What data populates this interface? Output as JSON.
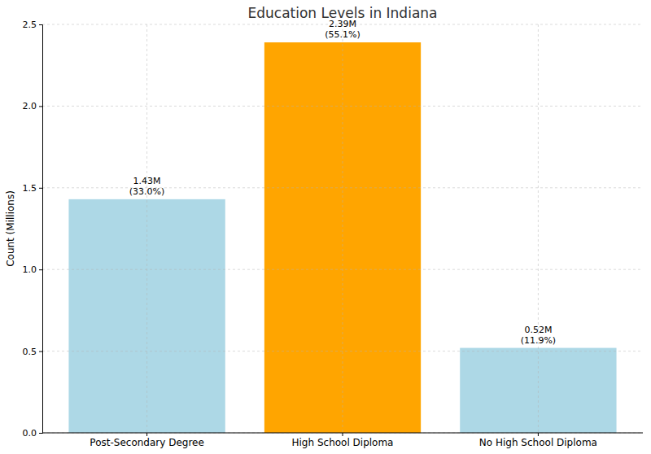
{
  "chart_data": {
    "type": "bar",
    "title": "Education Levels in Indiana",
    "y_label": "Count (Millions)",
    "categories": [
      "Post-Secondary Degree",
      "High School Diploma",
      "No High School Diploma"
    ],
    "values": [
      1.43,
      2.39,
      0.52
    ],
    "value_labels": [
      [
        "1.43M",
        "(33.0%)"
      ],
      [
        "2.39M",
        "(55.1%)"
      ],
      [
        "0.52M",
        "(11.9%)"
      ]
    ],
    "colors": [
      "#add8e6",
      "#ffa500",
      "#add8e6"
    ],
    "ylim": [
      0,
      2.5
    ],
    "yticks": [
      {
        "value": 0,
        "label": "0.0"
      },
      {
        "value": 0.5,
        "label": "0.5"
      },
      {
        "value": 1,
        "label": "1.0"
      },
      {
        "value": 1.5,
        "label": "1.5"
      },
      {
        "value": 2,
        "label": "2.0"
      },
      {
        "value": 2.5,
        "label": "2.5"
      }
    ],
    "grid": true,
    "data_labels": true
  }
}
